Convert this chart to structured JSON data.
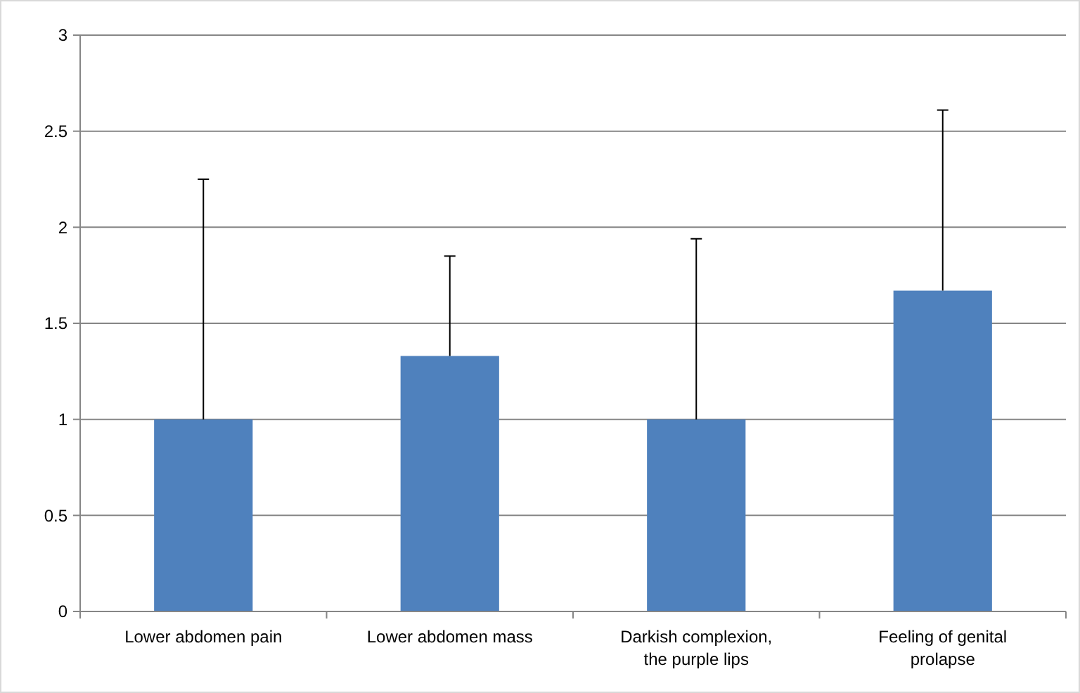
{
  "chart_data": {
    "type": "bar",
    "categories": [
      "Lower abdomen pain",
      "Lower abdomen mass",
      "Darkish complexion, the purple lips",
      "Feeling of genital prolapse"
    ],
    "values": [
      1,
      1.33,
      1,
      1.67
    ],
    "errors": [
      [
        1,
        2.25
      ],
      [
        1.33,
        1.85
      ],
      [
        1,
        1.94
      ],
      [
        1.67,
        2.61
      ]
    ],
    "color": "#4f81bd",
    "ylim": [
      0,
      3
    ],
    "yticks": [
      0,
      0.5,
      1,
      1.5,
      2,
      2.5,
      3
    ],
    "grid": "y"
  }
}
